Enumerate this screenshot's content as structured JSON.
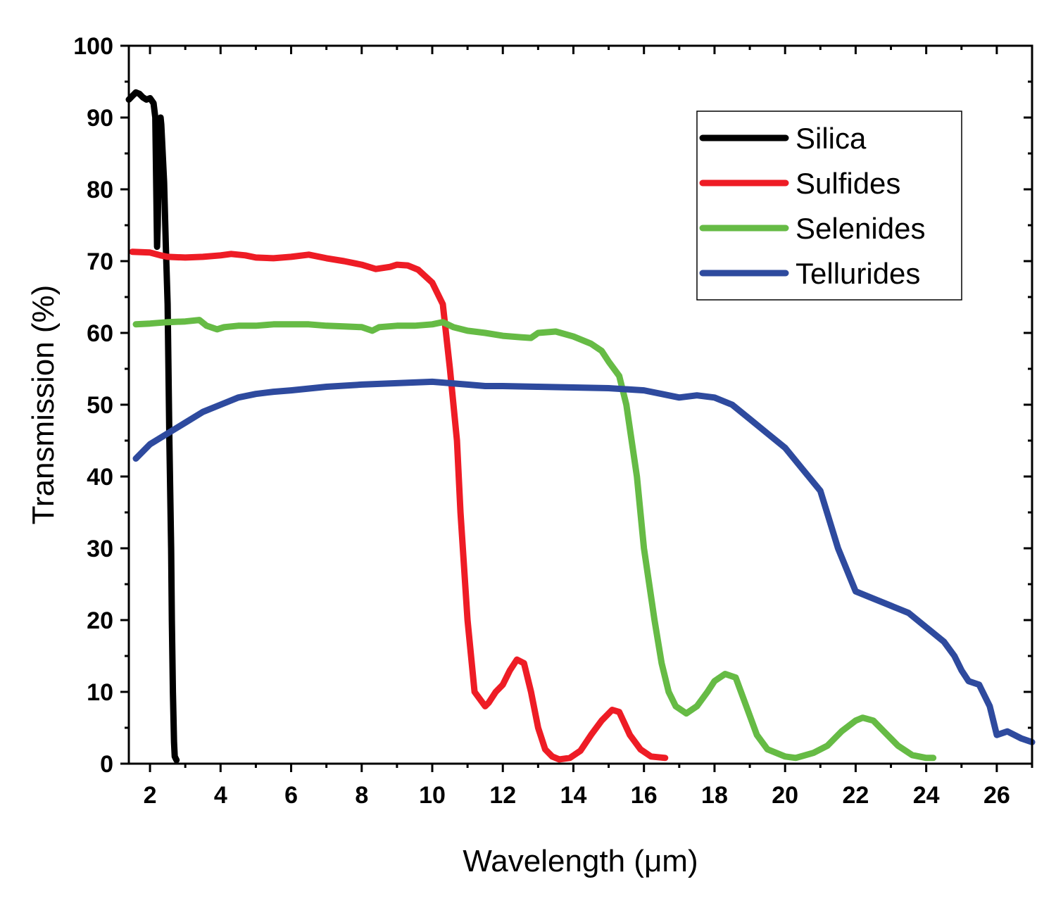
{
  "chart_data": {
    "type": "line",
    "xlabel": "Wavelength (μm)",
    "ylabel": "Transmission (%)",
    "xlim": [
      1.4,
      27
    ],
    "ylim": [
      0,
      100
    ],
    "xticks": [
      2,
      4,
      6,
      8,
      10,
      12,
      14,
      16,
      18,
      20,
      22,
      24,
      26
    ],
    "yticks": [
      0,
      10,
      20,
      30,
      40,
      50,
      60,
      70,
      80,
      90,
      100
    ],
    "xtick_labels": [
      "2",
      "4",
      "6",
      "8",
      "10",
      "12",
      "14",
      "16",
      "18",
      "20",
      "22",
      "24",
      "26"
    ],
    "ytick_labels": [
      "0",
      "10",
      "20",
      "30",
      "40",
      "50",
      "60",
      "70",
      "80",
      "90",
      "100"
    ],
    "grid": false,
    "legend_position": "top-right",
    "series": [
      {
        "name": "Silica",
        "color": "#000000",
        "x": [
          1.4,
          1.5,
          1.6,
          1.7,
          1.8,
          1.9,
          2.0,
          2.1,
          2.15,
          2.2,
          2.22,
          2.25,
          2.28,
          2.3,
          2.32,
          2.35,
          2.4,
          2.45,
          2.5,
          2.55,
          2.6,
          2.62,
          2.65,
          2.68,
          2.7,
          2.75
        ],
        "y": [
          92.5,
          93,
          93.5,
          93.3,
          92.8,
          92.5,
          92.7,
          92,
          90,
          72,
          75,
          85,
          89.5,
          90,
          89,
          86,
          81,
          72,
          64,
          45,
          30,
          20,
          10,
          3,
          1,
          0.5
        ]
      },
      {
        "name": "Sulfides",
        "color": "#ee1c25",
        "x": [
          1.5,
          2.0,
          2.3,
          2.5,
          3.0,
          3.5,
          4.0,
          4.3,
          4.7,
          5.0,
          5.5,
          6.0,
          6.5,
          7.0,
          7.5,
          8.0,
          8.4,
          8.8,
          9.0,
          9.3,
          9.6,
          10.0,
          10.3,
          10.5,
          10.7,
          10.8,
          11.0,
          11.2,
          11.5,
          11.6,
          11.8,
          12.0,
          12.2,
          12.4,
          12.6,
          12.8,
          13.0,
          13.2,
          13.4,
          13.6,
          13.9,
          14.2,
          14.5,
          14.8,
          15.1,
          15.3,
          15.6,
          15.9,
          16.2,
          16.6
        ],
        "y": [
          71.3,
          71.2,
          70.8,
          70.6,
          70.5,
          70.6,
          70.8,
          71,
          70.8,
          70.5,
          70.4,
          70.6,
          70.9,
          70.4,
          70,
          69.5,
          68.9,
          69.2,
          69.5,
          69.4,
          68.8,
          67,
          64,
          55,
          45,
          35,
          20,
          10,
          8,
          8.5,
          10,
          11,
          13,
          14.5,
          14,
          10,
          5,
          2,
          1,
          0.6,
          0.8,
          1.8,
          4,
          6,
          7.5,
          7.2,
          4,
          2,
          1,
          0.8
        ]
      },
      {
        "name": "Selenides",
        "color": "#66bb45",
        "x": [
          1.6,
          2.0,
          2.5,
          3.0,
          3.4,
          3.6,
          3.9,
          4.1,
          4.5,
          5.0,
          5.5,
          6.0,
          6.5,
          7.0,
          7.5,
          8.0,
          8.3,
          8.5,
          9.0,
          9.5,
          10.0,
          10.3,
          10.6,
          11.0,
          11.5,
          12.0,
          12.5,
          12.8,
          13.0,
          13.5,
          14.0,
          14.5,
          14.8,
          15.0,
          15.3,
          15.5,
          15.8,
          16.0,
          16.3,
          16.5,
          16.7,
          16.9,
          17.2,
          17.5,
          17.8,
          18.0,
          18.3,
          18.6,
          18.9,
          19.2,
          19.5,
          20.0,
          20.3,
          20.8,
          21.2,
          21.6,
          22.0,
          22.2,
          22.5,
          22.8,
          23.2,
          23.6,
          24.0,
          24.2
        ],
        "y": [
          61.2,
          61.3,
          61.5,
          61.6,
          61.8,
          61,
          60.5,
          60.8,
          61,
          61,
          61.2,
          61.2,
          61.2,
          61,
          60.9,
          60.8,
          60.3,
          60.8,
          61,
          61,
          61.2,
          61.5,
          60.8,
          60.3,
          60,
          59.6,
          59.4,
          59.3,
          60,
          60.2,
          59.5,
          58.5,
          57.5,
          56,
          54,
          50,
          40,
          30,
          20,
          14,
          10,
          8,
          7,
          8,
          10,
          11.5,
          12.5,
          12,
          8,
          4,
          2,
          1,
          0.8,
          1.5,
          2.5,
          4.5,
          6,
          6.4,
          6,
          4.5,
          2.5,
          1.2,
          0.8,
          0.8
        ]
      },
      {
        "name": "Tellurides",
        "color": "#2e4a9e",
        "x": [
          1.6,
          2.0,
          2.5,
          3.0,
          3.5,
          4.0,
          4.5,
          5.0,
          5.5,
          6.0,
          7.0,
          8.0,
          9.0,
          10.0,
          10.5,
          11.0,
          11.5,
          12.0,
          13.0,
          14.0,
          15.0,
          16.0,
          16.5,
          17.0,
          17.5,
          18.0,
          18.5,
          19.0,
          19.5,
          20.0,
          20.5,
          21.0,
          21.5,
          22.0,
          22.5,
          23.0,
          23.5,
          24.0,
          24.5,
          24.8,
          25.0,
          25.2,
          25.5,
          25.8,
          26.0,
          26.3,
          26.7,
          27.0
        ],
        "y": [
          42.5,
          44.5,
          46,
          47.5,
          49,
          50,
          51,
          51.5,
          51.8,
          52,
          52.5,
          52.8,
          53,
          53.2,
          53,
          52.8,
          52.6,
          52.6,
          52.5,
          52.4,
          52.3,
          52,
          51.5,
          51,
          51.3,
          51,
          50,
          48,
          46,
          44,
          41,
          38,
          30,
          24,
          23,
          22,
          21,
          19,
          17,
          15,
          13,
          11.5,
          11,
          8,
          4,
          4.5,
          3.5,
          3
        ]
      }
    ]
  }
}
